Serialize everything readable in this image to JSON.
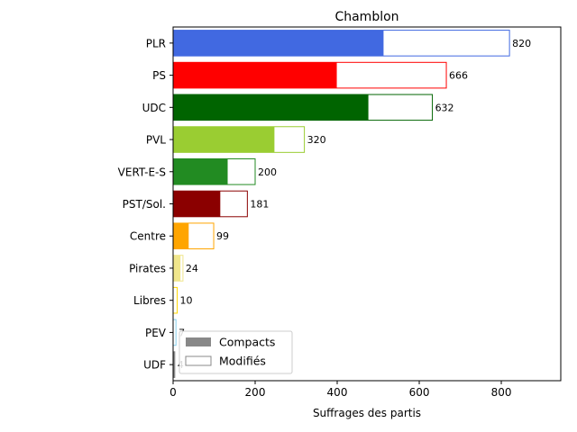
{
  "chart_data": {
    "type": "bar",
    "orientation": "horizontal",
    "title": "Chamblon",
    "xlabel": "Suffrages des partis",
    "ylabel": "",
    "xlim": [
      0,
      945
    ],
    "xticks": [
      0,
      200,
      400,
      600,
      800
    ],
    "grid": false,
    "legend": {
      "placement": "lower-left",
      "entries": [
        "Compacts",
        "Modifiés"
      ],
      "colors": [
        "#888888",
        "#ffffff"
      ]
    },
    "categories": [
      "PLR",
      "PS",
      "UDC",
      "PVL",
      "VERT-E-S",
      "PST/Sol.",
      "Centre",
      "Pirates",
      "Libres",
      "PEV",
      "UDF"
    ],
    "colors": [
      "#4169e1",
      "#ff0000",
      "#006400",
      "#9acd32",
      "#228b22",
      "#8b0000",
      "#ffa500",
      "#f0e68c",
      "#ffd700",
      "#87ceeb",
      "#808080"
    ],
    "series": [
      {
        "name": "Compacts",
        "values": [
          513,
          399,
          476,
          247,
          133,
          115,
          38,
          18,
          0,
          0,
          3
        ]
      },
      {
        "name": "Modifiés",
        "values": [
          307,
          267,
          156,
          73,
          67,
          66,
          61,
          6,
          10,
          7,
          1
        ]
      }
    ],
    "totals": [
      820,
      666,
      632,
      320,
      200,
      181,
      99,
      24,
      10,
      7,
      4
    ]
  }
}
